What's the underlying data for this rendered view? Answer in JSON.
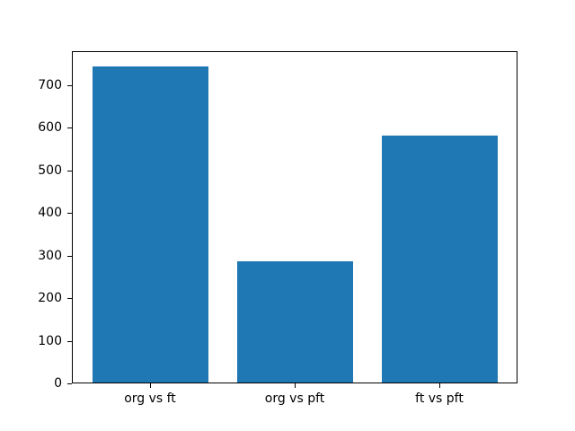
{
  "chart_data": {
    "type": "bar",
    "title": "",
    "xlabel": "",
    "ylabel": "",
    "categories": [
      "org vs ft",
      "org vs pft",
      "ft vs pft"
    ],
    "values": [
      742,
      285,
      580
    ],
    "bar_color": "#1f77b4",
    "bar_width_fraction": 0.8,
    "x_margin_fraction": 0.05,
    "ylim": [
      0,
      779
    ],
    "yticks": [
      0,
      100,
      200,
      300,
      400,
      500,
      600,
      700
    ],
    "grid": false,
    "legend": false,
    "background_color": "#ffffff",
    "axis_color": "#000000",
    "tick_label_color": "#000000"
  }
}
